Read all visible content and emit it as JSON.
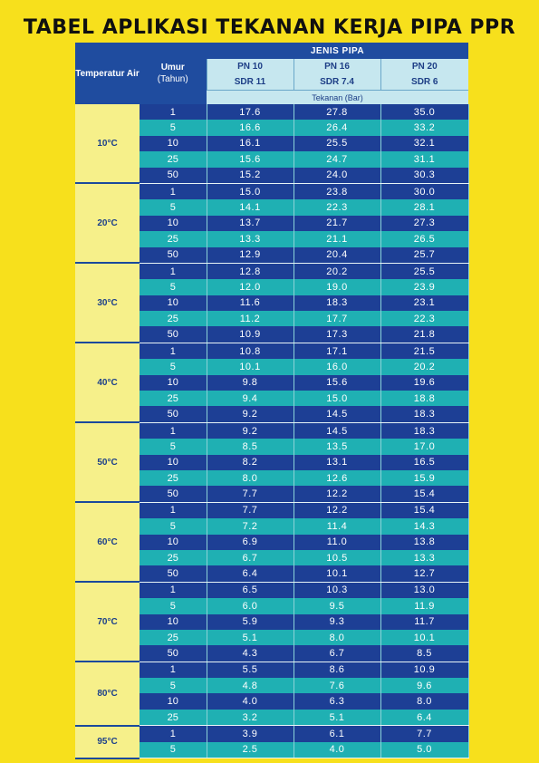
{
  "title": "TABEL APLIKASI TEKANAN KERJA PIPA PPR",
  "header": {
    "temp_label": "Temperatur Air",
    "umur_label": "Umur",
    "umur_unit": "(Tahun)",
    "jenis_pipa": "JENIS PIPA",
    "pn": [
      "PN 10",
      "PN 16",
      "PN 20"
    ],
    "sdr": [
      "SDR 11",
      "SDR 7.4",
      "SDR 6"
    ],
    "tekanan": "Tekanan (Bar)"
  },
  "groups": [
    {
      "temp": "10°C",
      "rows": [
        [
          "1",
          "17.6",
          "27.8",
          "35.0"
        ],
        [
          "5",
          "16.6",
          "26.4",
          "33.2"
        ],
        [
          "10",
          "16.1",
          "25.5",
          "32.1"
        ],
        [
          "25",
          "15.6",
          "24.7",
          "31.1"
        ],
        [
          "50",
          "15.2",
          "24.0",
          "30.3"
        ]
      ]
    },
    {
      "temp": "20°C",
      "rows": [
        [
          "1",
          "15.0",
          "23.8",
          "30.0"
        ],
        [
          "5",
          "14.1",
          "22.3",
          "28.1"
        ],
        [
          "10",
          "13.7",
          "21.7",
          "27.3"
        ],
        [
          "25",
          "13.3",
          "21.1",
          "26.5"
        ],
        [
          "50",
          "12.9",
          "20.4",
          "25.7"
        ]
      ]
    },
    {
      "temp": "30°C",
      "rows": [
        [
          "1",
          "12.8",
          "20.2",
          "25.5"
        ],
        [
          "5",
          "12.0",
          "19.0",
          "23.9"
        ],
        [
          "10",
          "11.6",
          "18.3",
          "23.1"
        ],
        [
          "25",
          "11.2",
          "17.7",
          "22.3"
        ],
        [
          "50",
          "10.9",
          "17.3",
          "21.8"
        ]
      ]
    },
    {
      "temp": "40°C",
      "rows": [
        [
          "1",
          "10.8",
          "17.1",
          "21.5"
        ],
        [
          "5",
          "10.1",
          "16.0",
          "20.2"
        ],
        [
          "10",
          "9.8",
          "15.6",
          "19.6"
        ],
        [
          "25",
          "9.4",
          "15.0",
          "18.8"
        ],
        [
          "50",
          "9.2",
          "14.5",
          "18.3"
        ]
      ]
    },
    {
      "temp": "50°C",
      "rows": [
        [
          "1",
          "9.2",
          "14.5",
          "18.3"
        ],
        [
          "5",
          "8.5",
          "13.5",
          "17.0"
        ],
        [
          "10",
          "8.2",
          "13.1",
          "16.5"
        ],
        [
          "25",
          "8.0",
          "12.6",
          "15.9"
        ],
        [
          "50",
          "7.7",
          "12.2",
          "15.4"
        ]
      ]
    },
    {
      "temp": "60°C",
      "rows": [
        [
          "1",
          "7.7",
          "12.2",
          "15.4"
        ],
        [
          "5",
          "7.2",
          "11.4",
          "14.3"
        ],
        [
          "10",
          "6.9",
          "11.0",
          "13.8"
        ],
        [
          "25",
          "6.7",
          "10.5",
          "13.3"
        ],
        [
          "50",
          "6.4",
          "10.1",
          "12.7"
        ]
      ]
    },
    {
      "temp": "70°C",
      "rows": [
        [
          "1",
          "6.5",
          "10.3",
          "13.0"
        ],
        [
          "5",
          "6.0",
          "9.5",
          "11.9"
        ],
        [
          "10",
          "5.9",
          "9.3",
          "11.7"
        ],
        [
          "25",
          "5.1",
          "8.0",
          "10.1"
        ],
        [
          "50",
          "4.3",
          "6.7",
          "8.5"
        ]
      ]
    },
    {
      "temp": "80°C",
      "rows": [
        [
          "1",
          "5.5",
          "8.6",
          "10.9"
        ],
        [
          "5",
          "4.8",
          "7.6",
          "9.6"
        ],
        [
          "10",
          "4.0",
          "6.3",
          "8.0"
        ],
        [
          "25",
          "3.2",
          "5.1",
          "6.4"
        ]
      ]
    },
    {
      "temp": "95°C",
      "rows": [
        [
          "1",
          "3.9",
          "6.1",
          "7.7"
        ],
        [
          "5",
          "2.5",
          "4.0",
          "5.0"
        ]
      ]
    }
  ]
}
